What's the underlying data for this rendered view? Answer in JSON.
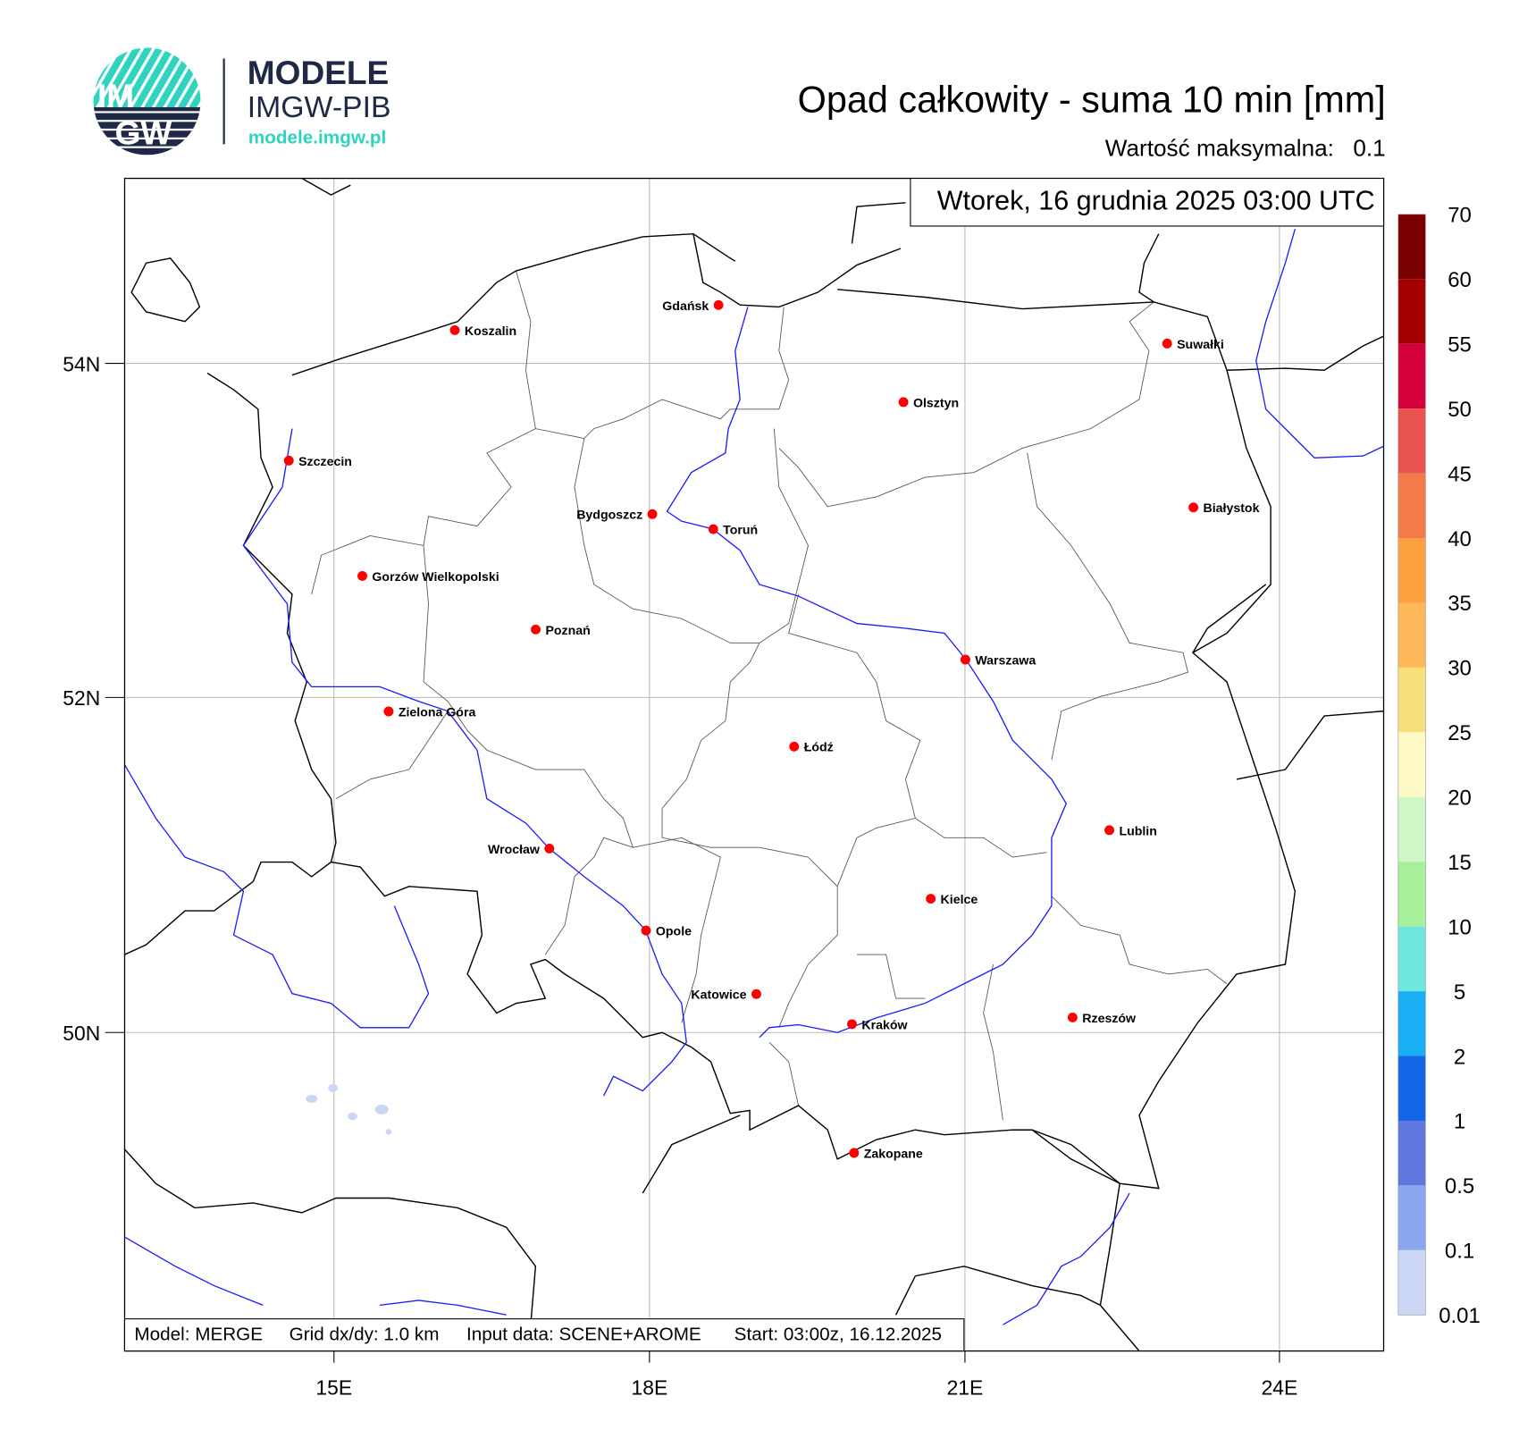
{
  "logo": {
    "circle_text_top": "IM",
    "circle_text_bottom": "GW",
    "brand": "MODELE",
    "subbrand": "IMGW-PIB",
    "url": "modele.imgw.pl",
    "teal": "#2fd3c0",
    "navy": "#1e2a45"
  },
  "header": {
    "title": "Opad całkowity - suma 10 min [mm]",
    "max_label": "Wartość maksymalna:",
    "max_value": "0.1"
  },
  "date_box": "Wtorek, 16 grudnia 2025 03:00 UTC",
  "info_bar": {
    "model": "Model: MERGE",
    "grid": "Grid dx/dy: 1.0 km",
    "input": "Input data: SCENE+AROME",
    "start": "Start: 03:00z, 16.12.2025"
  },
  "axes": {
    "x_ticks": [
      "15E",
      "18E",
      "21E",
      "24E"
    ],
    "y_ticks": [
      "54N",
      "52N",
      "50N"
    ]
  },
  "colorbar": {
    "labels": [
      "70",
      "60",
      "55",
      "50",
      "45",
      "40",
      "35",
      "30",
      "25",
      "20",
      "15",
      "10",
      "5",
      "2",
      "1",
      "0.5",
      "0.1",
      "0.01"
    ],
    "colors": [
      "#7a0000",
      "#a50000",
      "#d4003a",
      "#e8524f",
      "#f47a4a",
      "#fca040",
      "#fdb85a",
      "#f8e07a",
      "#fdfac5",
      "#d0f7c8",
      "#a8f09a",
      "#6ee8de",
      "#1aaef5",
      "#1565e8",
      "#5f78e0",
      "#8aa8f0",
      "#ccd6f5"
    ]
  },
  "cities": [
    {
      "name": "Gdańsk",
      "lon": 18.66,
      "lat": 54.35,
      "label_side": "left"
    },
    {
      "name": "Koszalin",
      "lon": 16.15,
      "lat": 54.2
    },
    {
      "name": "Suwałki",
      "lon": 22.93,
      "lat": 54.12
    },
    {
      "name": "Olsztyn",
      "lon": 20.42,
      "lat": 53.77
    },
    {
      "name": "Szczecin",
      "lon": 14.57,
      "lat": 53.42
    },
    {
      "name": "Białystok",
      "lon": 23.18,
      "lat": 53.14
    },
    {
      "name": "Bydgoszcz",
      "lon": 18.03,
      "lat": 53.1,
      "label_side": "left"
    },
    {
      "name": "Toruń",
      "lon": 18.61,
      "lat": 53.01
    },
    {
      "name": "Gorzów Wielkopolski",
      "lon": 15.27,
      "lat": 52.73
    },
    {
      "name": "Poznań",
      "lon": 16.92,
      "lat": 52.41
    },
    {
      "name": "Warszawa",
      "lon": 21.01,
      "lat": 52.23
    },
    {
      "name": "Zielona Góra",
      "lon": 15.52,
      "lat": 51.92
    },
    {
      "name": "Łódź",
      "lon": 19.38,
      "lat": 51.71
    },
    {
      "name": "Lublin",
      "lon": 22.38,
      "lat": 51.21
    },
    {
      "name": "Wrocław",
      "lon": 17.05,
      "lat": 51.1,
      "label_side": "left"
    },
    {
      "name": "Kielce",
      "lon": 20.68,
      "lat": 50.8
    },
    {
      "name": "Opole",
      "lon": 17.97,
      "lat": 50.61
    },
    {
      "name": "Katowice",
      "lon": 19.02,
      "lat": 50.23,
      "label_side": "left"
    },
    {
      "name": "Rzeszów",
      "lon": 22.03,
      "lat": 50.09
    },
    {
      "name": "Kraków",
      "lon": 19.93,
      "lat": 50.05
    },
    {
      "name": "Zakopane",
      "lon": 19.95,
      "lat": 49.28
    }
  ],
  "colors": {
    "border": "#000000",
    "river": "#1a1aff",
    "admin": "#444444",
    "city_marker": "#ff0000",
    "grid": "#bbbbbb"
  }
}
